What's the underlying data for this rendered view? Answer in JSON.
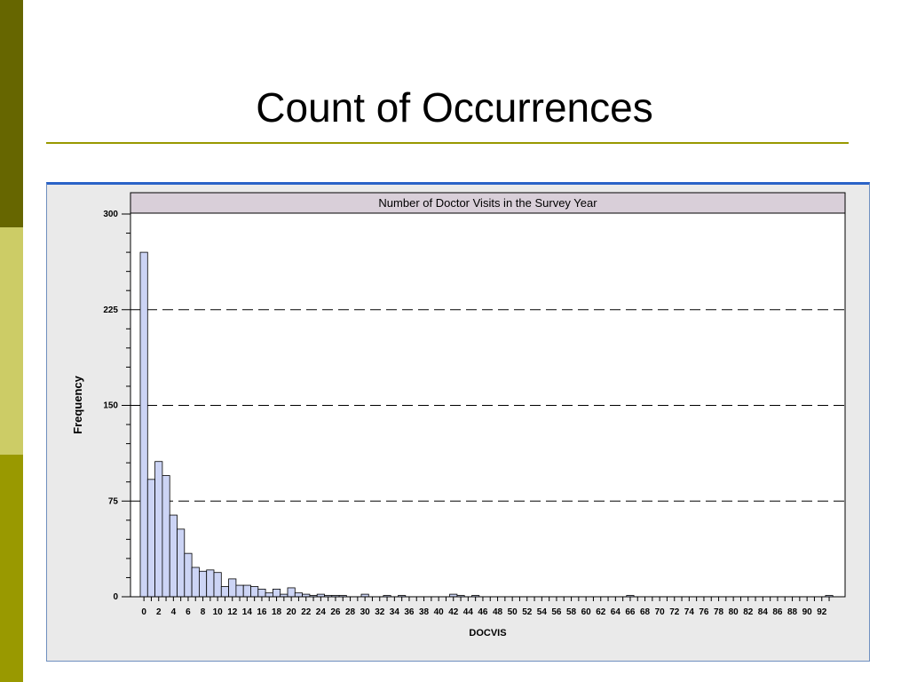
{
  "slide": {
    "title": "Count of Occurrences",
    "colors": {
      "band_top": "#666600",
      "band_middle": "#cccc66",
      "band_bottom": "#999900",
      "rule": "#999900"
    }
  },
  "chart_data": {
    "type": "bar",
    "title": "Number of Doctor Visits in the Survey Year",
    "xlabel": "DOCVIS",
    "ylabel": "Frequency",
    "ylim": [
      0,
      300
    ],
    "y_ticks": [
      0,
      75,
      150,
      225,
      300
    ],
    "gridlines": [
      75,
      150,
      225
    ],
    "grid_style": "dashed",
    "bar_fill": "#ccd4f5",
    "bar_stroke": "#000000",
    "title_band_fill": "#d9cfd9",
    "x_tick_labels": [
      "0",
      "2",
      "4",
      "6",
      "8",
      "10",
      "12",
      "14",
      "16",
      "18",
      "20",
      "22",
      "24",
      "26",
      "28",
      "30",
      "32",
      "34",
      "36",
      "38",
      "40",
      "42",
      "44",
      "46",
      "48",
      "50",
      "52",
      "54",
      "56",
      "58",
      "60",
      "62",
      "64",
      "66",
      "68",
      "70",
      "72",
      "74",
      "76",
      "78",
      "80",
      "82",
      "84",
      "86",
      "88",
      "90",
      "92"
    ],
    "x": [
      0,
      1,
      2,
      3,
      4,
      5,
      6,
      7,
      8,
      9,
      10,
      11,
      12,
      13,
      14,
      15,
      16,
      17,
      18,
      19,
      20,
      21,
      22,
      23,
      24,
      25,
      26,
      27,
      28,
      29,
      30,
      31,
      32,
      33,
      34,
      35,
      36,
      37,
      38,
      39,
      40,
      41,
      42,
      43,
      44,
      45,
      46,
      47,
      48,
      49,
      50,
      51,
      52,
      53,
      54,
      55,
      56,
      57,
      58,
      59,
      60,
      61,
      62,
      63,
      64,
      65,
      66,
      67,
      68,
      69,
      70,
      71,
      72,
      73,
      74,
      75,
      76,
      77,
      78,
      79,
      80,
      81,
      82,
      83,
      84,
      85,
      86,
      87,
      88,
      89,
      90,
      91,
      92,
      93
    ],
    "values": [
      270,
      92,
      106,
      95,
      64,
      53,
      34,
      23,
      20,
      21,
      19,
      8,
      14,
      9,
      9,
      8,
      6,
      3,
      6,
      2,
      7,
      3,
      2,
      1,
      2,
      1,
      1,
      1,
      0,
      0,
      2,
      0,
      0,
      1,
      0,
      1,
      0,
      0,
      0,
      0,
      0,
      0,
      2,
      1,
      0,
      1,
      0,
      0,
      0,
      0,
      0,
      0,
      0,
      0,
      0,
      0,
      0,
      0,
      0,
      0,
      0,
      0,
      0,
      0,
      0,
      0,
      1,
      0,
      0,
      0,
      0,
      0,
      0,
      0,
      0,
      0,
      0,
      0,
      0,
      0,
      0,
      0,
      0,
      0,
      0,
      0,
      0,
      0,
      0,
      0,
      0,
      0,
      0,
      1
    ]
  }
}
